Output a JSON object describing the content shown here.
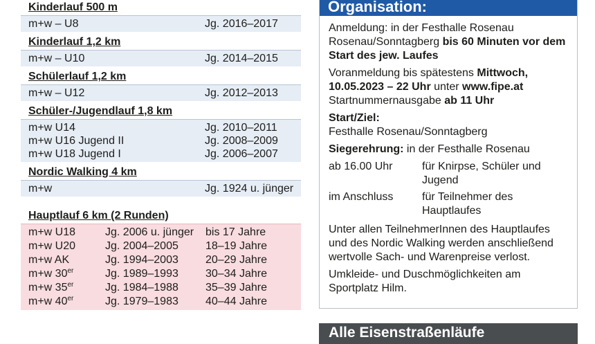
{
  "left": {
    "sections": [
      {
        "title": "Kinderlauf 500 m",
        "rows": [
          [
            "m+w – U8",
            "Jg. 2016–2017"
          ]
        ]
      },
      {
        "title": "Kinderlauf 1,2 km",
        "rows": [
          [
            "m+w – U10",
            "Jg. 2014–2015"
          ]
        ]
      },
      {
        "title": "Schülerlauf 1,2 km",
        "rows": [
          [
            "m+w – U12",
            "Jg. 2012–2013"
          ]
        ]
      },
      {
        "title": "Schüler-/Jugendlauf 1,8 km",
        "rows": [
          [
            "m+w U14",
            "Jg. 2010–2011"
          ],
          [
            "m+w U16 Jugend II",
            "Jg. 2008–2009"
          ],
          [
            "m+w U18 Jugend I",
            "Jg. 2006–2007"
          ]
        ]
      },
      {
        "title": "Nordic Walking 4 km",
        "rows": [
          [
            "m+w",
            "Jg. 1924 u. jünger"
          ]
        ]
      }
    ],
    "haupt": {
      "title": "Hauptlauf 6 km (2 Runden)",
      "rows": [
        {
          "cls": "m+w U18",
          "jg": "Jg. 2006 u. jünger",
          "age": "bis 17 Jahre"
        },
        {
          "cls": "m+w U20",
          "jg": "Jg. 2004–2005",
          "age": "18–19 Jahre"
        },
        {
          "cls": "m+w AK",
          "jg": "Jg. 1994–2003",
          "age": "20–29 Jahre"
        },
        {
          "cls": "m+w 30",
          "sup": "er",
          "jg": "Jg. 1989–1993",
          "age": "30–34 Jahre"
        },
        {
          "cls": "m+w 35",
          "sup": "er",
          "jg": "Jg. 1984–1988",
          "age": "35–39 Jahre"
        },
        {
          "cls": "m+w 40",
          "sup": "er",
          "jg": "Jg. 1979–1983",
          "age": "40–44 Jahre"
        }
      ]
    }
  },
  "org": {
    "title": "Organisation:",
    "anmeldung": "Anmeldung: in der Festhalle Rosenau Rosenau/Sonntagberg ",
    "anmeldung_bold": "bis 60 Minuten vor dem Start des jew. Laufes",
    "vor_1": "Voranmeldung bis spätestens ",
    "vor_2": "Mittwoch, 10.05.2023 – 22 Uhr",
    "vor_3": " unter ",
    "vor_4": "www.fipe.at",
    "start_1": "Startnummernausgabe ",
    "start_2": "ab 11 Uhr",
    "ziel_label": "Start/Ziel:",
    "ziel_value": "Festhalle Rosenau/Sonntagberg",
    "sieger_label": "Siegerehrung:",
    "sieger_value": " in der Festhalle Rosenau",
    "sched": [
      {
        "when": "ab 16.00 Uhr",
        "what": "für Knirpse, Schüler und Jugend"
      },
      {
        "when": "im Anschluss",
        "what": "für Teilnehmer des Hauptlaufes"
      }
    ],
    "preise": "Unter allen TeilnehmerInnen des Hauptlaufes und des Nordic Walking werden anschließend wertvolle Sach- und Warenpreise verlost.",
    "umkleide": "Umkleide- und Duschmöglichkeiten am Sportplatz Hilm."
  },
  "bottom_banner": "Alle Eisenstraßenläufe"
}
